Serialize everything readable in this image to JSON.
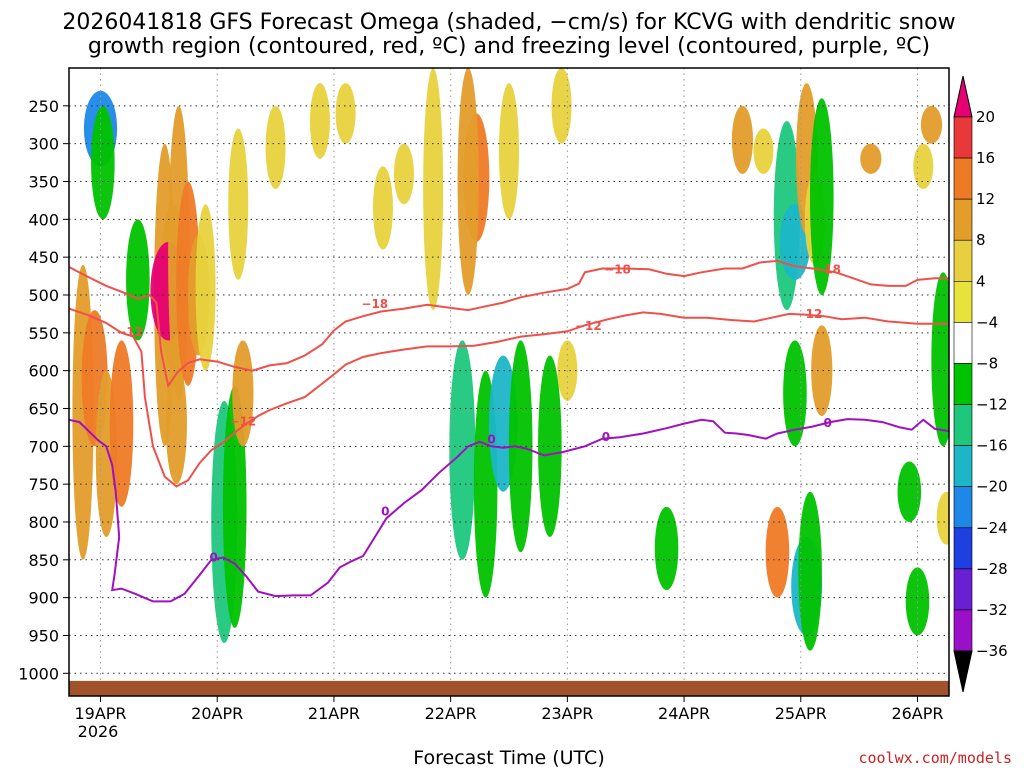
{
  "chart_data": {
    "type": "heatmap",
    "title_lines": [
      "2026041818 GFS Forecast Omega (shaded, −cm/s) for KCVG with dendritic snow",
      "growth region (contoured, red, ºC) and freezing level (contoured, purple, ºC)"
    ],
    "xlabel": "Forecast Time (UTC)",
    "ylabel": "",
    "x_ticks": [
      "19APR",
      "20APR",
      "21APR",
      "22APR",
      "23APR",
      "24APR",
      "25APR",
      "26APR"
    ],
    "x_year_label": "2026",
    "xlim": [
      -0.27,
      7.27
    ],
    "y_ticks": [
      250,
      300,
      350,
      400,
      450,
      500,
      550,
      600,
      650,
      700,
      750,
      800,
      850,
      900,
      950,
      1000
    ],
    "ylim": [
      200,
      1030
    ],
    "colorbar": {
      "labels": [
        "20",
        "16",
        "12",
        "8",
        "4",
        "−4",
        "−8",
        "−12",
        "−16",
        "−20",
        "−24",
        "−28",
        "−32",
        "−36"
      ],
      "colors": [
        "#e60073",
        "#e8383a",
        "#ef7a26",
        "#e39d2b",
        "#e8cf3d",
        "#e8e23c",
        "#ffffff",
        "#00c200",
        "#1ec77c",
        "#1cb6c8",
        "#1e88e8",
        "#1f3fe0",
        "#6a1fd4",
        "#9a10c8",
        "#a0a0a0",
        "#000000"
      ]
    },
    "series": [
      {
        "name": "-18",
        "color": "#f0504a",
        "label": "−18",
        "points": [
          [
            -0.27,
            463
          ],
          [
            -0.12,
            475
          ],
          [
            0.05,
            488
          ],
          [
            0.2,
            497
          ],
          [
            0.32,
            505
          ],
          [
            0.42,
            500
          ],
          [
            0.48,
            510
          ],
          [
            0.52,
            575
          ],
          [
            0.58,
            620
          ],
          [
            0.66,
            602
          ],
          [
            0.75,
            590
          ],
          [
            0.85,
            585
          ],
          [
            1.0,
            588
          ],
          [
            1.15,
            595
          ],
          [
            1.3,
            600
          ],
          [
            1.45,
            593
          ],
          [
            1.6,
            590
          ],
          [
            1.75,
            580
          ],
          [
            1.9,
            565
          ],
          [
            2.0,
            547
          ],
          [
            2.1,
            535
          ],
          [
            2.25,
            528
          ],
          [
            2.4,
            522
          ],
          [
            2.6,
            518
          ],
          [
            2.8,
            513
          ],
          [
            3.0,
            517
          ],
          [
            3.15,
            520
          ],
          [
            3.3,
            515
          ],
          [
            3.45,
            510
          ],
          [
            3.6,
            503
          ],
          [
            3.8,
            497
          ],
          [
            4.0,
            492
          ],
          [
            4.1,
            485
          ],
          [
            4.15,
            470
          ],
          [
            4.3,
            465
          ],
          [
            4.5,
            465
          ],
          [
            4.7,
            466
          ],
          [
            4.85,
            472
          ],
          [
            5.0,
            475
          ],
          [
            5.15,
            470
          ],
          [
            5.35,
            465
          ],
          [
            5.5,
            465
          ],
          [
            5.65,
            457
          ],
          [
            5.8,
            455
          ],
          [
            5.95,
            462
          ],
          [
            6.1,
            465
          ],
          [
            6.3,
            470
          ],
          [
            6.45,
            478
          ],
          [
            6.6,
            486
          ],
          [
            6.75,
            488
          ],
          [
            6.9,
            488
          ],
          [
            7.0,
            480
          ],
          [
            7.15,
            478
          ],
          [
            7.27,
            478
          ]
        ],
        "labels": [
          {
            "x": 2.35,
            "y": 512
          },
          {
            "x": 4.43,
            "y": 466
          },
          {
            "x": 6.23,
            "y": 466
          }
        ]
      },
      {
        "name": "-12",
        "color": "#f0504a",
        "label": "−12",
        "points": [
          [
            -0.27,
            518
          ],
          [
            -0.1,
            527
          ],
          [
            0.05,
            537
          ],
          [
            0.18,
            550
          ],
          [
            0.28,
            555
          ],
          [
            0.35,
            575
          ],
          [
            0.38,
            635
          ],
          [
            0.45,
            700
          ],
          [
            0.55,
            740
          ],
          [
            0.65,
            753
          ],
          [
            0.75,
            745
          ],
          [
            0.85,
            722
          ],
          [
            0.95,
            705
          ],
          [
            1.05,
            695
          ],
          [
            1.15,
            682
          ],
          [
            1.25,
            670
          ],
          [
            1.35,
            660
          ],
          [
            1.45,
            652
          ],
          [
            1.6,
            643
          ],
          [
            1.75,
            635
          ],
          [
            1.9,
            617
          ],
          [
            2.0,
            605
          ],
          [
            2.1,
            592
          ],
          [
            2.25,
            582
          ],
          [
            2.4,
            577
          ],
          [
            2.6,
            572
          ],
          [
            2.8,
            568
          ],
          [
            3.0,
            568
          ],
          [
            3.2,
            567
          ],
          [
            3.4,
            562
          ],
          [
            3.6,
            555
          ],
          [
            3.8,
            552
          ],
          [
            4.0,
            548
          ],
          [
            4.15,
            540
          ],
          [
            4.35,
            532
          ],
          [
            4.5,
            527
          ],
          [
            4.65,
            523
          ],
          [
            4.8,
            525
          ],
          [
            5.0,
            530
          ],
          [
            5.2,
            530
          ],
          [
            5.4,
            533
          ],
          [
            5.6,
            535
          ],
          [
            5.75,
            530
          ],
          [
            5.9,
            525
          ],
          [
            6.05,
            526
          ],
          [
            6.2,
            528
          ],
          [
            6.35,
            532
          ],
          [
            6.55,
            530
          ],
          [
            6.75,
            535
          ],
          [
            7.0,
            538
          ],
          [
            7.27,
            538
          ]
        ],
        "labels": [
          {
            "x": 0.25,
            "y": 549
          },
          {
            "x": 1.22,
            "y": 667
          },
          {
            "x": 4.18,
            "y": 541
          },
          {
            "x": 6.07,
            "y": 525
          }
        ]
      },
      {
        "name": "0",
        "color": "#a010c0",
        "label": "0",
        "points": [
          [
            -0.27,
            665
          ],
          [
            -0.18,
            668
          ],
          [
            -0.1,
            680
          ],
          [
            -0.02,
            692
          ],
          [
            0.05,
            700
          ],
          [
            0.1,
            725
          ],
          [
            0.13,
            760
          ],
          [
            0.16,
            820
          ],
          [
            0.12,
            870
          ],
          [
            0.1,
            890
          ],
          [
            0.18,
            888
          ],
          [
            0.3,
            895
          ],
          [
            0.45,
            905
          ],
          [
            0.6,
            905
          ],
          [
            0.72,
            895
          ],
          [
            0.85,
            870
          ],
          [
            0.95,
            850
          ],
          [
            1.05,
            847
          ],
          [
            1.15,
            855
          ],
          [
            1.25,
            872
          ],
          [
            1.35,
            892
          ],
          [
            1.5,
            898
          ],
          [
            1.65,
            897
          ],
          [
            1.8,
            897
          ],
          [
            1.95,
            880
          ],
          [
            2.05,
            860
          ],
          [
            2.15,
            852
          ],
          [
            2.25,
            845
          ],
          [
            2.35,
            820
          ],
          [
            2.45,
            795
          ],
          [
            2.6,
            775
          ],
          [
            2.75,
            758
          ],
          [
            2.9,
            735
          ],
          [
            3.05,
            715
          ],
          [
            3.15,
            700
          ],
          [
            3.25,
            694
          ],
          [
            3.35,
            700
          ],
          [
            3.45,
            702
          ],
          [
            3.55,
            700
          ],
          [
            3.65,
            703
          ],
          [
            3.8,
            712
          ],
          [
            3.95,
            708
          ],
          [
            4.15,
            700
          ],
          [
            4.3,
            690
          ],
          [
            4.45,
            688
          ],
          [
            4.65,
            683
          ],
          [
            4.85,
            676
          ],
          [
            5.0,
            670
          ],
          [
            5.15,
            665
          ],
          [
            5.25,
            667
          ],
          [
            5.35,
            682
          ],
          [
            5.45,
            683
          ],
          [
            5.55,
            685
          ],
          [
            5.7,
            690
          ],
          [
            5.8,
            683
          ],
          [
            5.95,
            678
          ],
          [
            6.1,
            674
          ],
          [
            6.25,
            668
          ],
          [
            6.4,
            664
          ],
          [
            6.55,
            665
          ],
          [
            6.7,
            668
          ],
          [
            6.85,
            675
          ],
          [
            6.95,
            678
          ],
          [
            7.05,
            665
          ],
          [
            7.15,
            677
          ],
          [
            7.27,
            680
          ]
        ],
        "labels": [
          {
            "x": 0.97,
            "y": 847
          },
          {
            "x": 2.44,
            "y": 786
          },
          {
            "x": 3.35,
            "y": 691
          },
          {
            "x": 4.33,
            "y": 688
          },
          {
            "x": 6.23,
            "y": 669
          }
        ]
      }
    ],
    "omega_regions": [
      {
        "x": 0.62,
        "y0": 380,
        "y1": 600,
        "v": 10
      },
      {
        "x": 0.55,
        "y0": 300,
        "y1": 700,
        "v": 6
      },
      {
        "x": 0.58,
        "y0": 430,
        "y1": 560,
        "v": 18
      },
      {
        "x": 0.67,
        "y0": 250,
        "y1": 640,
        "v": 6
      },
      {
        "x": 0.75,
        "y0": 350,
        "y1": 620,
        "v": 8
      },
      {
        "x": 0.84,
        "y0": 420,
        "y1": 580,
        "v": 6
      },
      {
        "x": 0.9,
        "y0": 380,
        "y1": 600,
        "v": 5
      },
      {
        "x": 0.65,
        "y0": 590,
        "y1": 750,
        "v": 6
      },
      {
        "x": 0.0,
        "y0": 230,
        "y1": 330,
        "v": -16
      },
      {
        "x": 0.02,
        "y0": 250,
        "y1": 400,
        "v": -8
      },
      {
        "x": -0.15,
        "y0": 460,
        "y1": 850,
        "v": 6
      },
      {
        "x": -0.05,
        "y0": 520,
        "y1": 700,
        "v": 10
      },
      {
        "x": 0.05,
        "y0": 600,
        "y1": 820,
        "v": 6
      },
      {
        "x": 0.18,
        "y0": 560,
        "y1": 780,
        "v": 8
      },
      {
        "x": 0.32,
        "y0": 400,
        "y1": 560,
        "v": -8
      },
      {
        "x": 1.06,
        "y0": 640,
        "y1": 960,
        "v": -10
      },
      {
        "x": 1.15,
        "y0": 620,
        "y1": 940,
        "v": -8
      },
      {
        "x": 1.22,
        "y0": 560,
        "y1": 700,
        "v": 6
      },
      {
        "x": 1.18,
        "y0": 280,
        "y1": 480,
        "v": 5
      },
      {
        "x": 1.5,
        "y0": 250,
        "y1": 360,
        "v": 5
      },
      {
        "x": 1.88,
        "y0": 220,
        "y1": 320,
        "v": 5
      },
      {
        "x": 2.1,
        "y0": 220,
        "y1": 300,
        "v": 5
      },
      {
        "x": 2.42,
        "y0": 330,
        "y1": 440,
        "v": 5
      },
      {
        "x": 2.6,
        "y0": 300,
        "y1": 380,
        "v": 5
      },
      {
        "x": 3.22,
        "y0": 260,
        "y1": 430,
        "v": 10
      },
      {
        "x": 3.15,
        "y0": 200,
        "y1": 500,
        "v": 6
      },
      {
        "x": 3.1,
        "y0": 560,
        "y1": 850,
        "v": -10
      },
      {
        "x": 3.3,
        "y0": 600,
        "y1": 900,
        "v": -8
      },
      {
        "x": 3.45,
        "y0": 580,
        "y1": 760,
        "v": -12
      },
      {
        "x": 3.6,
        "y0": 560,
        "y1": 840,
        "v": -8
      },
      {
        "x": 3.5,
        "y0": 220,
        "y1": 400,
        "v": 5
      },
      {
        "x": 3.85,
        "y0": 580,
        "y1": 820,
        "v": -8
      },
      {
        "x": 3.95,
        "y0": 200,
        "y1": 300,
        "v": 5
      },
      {
        "x": 4.0,
        "y0": 560,
        "y1": 640,
        "v": 5
      },
      {
        "x": 4.85,
        "y0": 780,
        "y1": 890,
        "v": -8
      },
      {
        "x": 5.5,
        "y0": 250,
        "y1": 340,
        "v": 6
      },
      {
        "x": 5.68,
        "y0": 280,
        "y1": 340,
        "v": 5
      },
      {
        "x": 5.88,
        "y0": 270,
        "y1": 520,
        "v": -10
      },
      {
        "x": 5.95,
        "y0": 380,
        "y1": 480,
        "v": -14
      },
      {
        "x": 6.05,
        "y0": 220,
        "y1": 420,
        "v": 6
      },
      {
        "x": 6.12,
        "y0": 340,
        "y1": 460,
        "v": 5
      },
      {
        "x": 5.8,
        "y0": 780,
        "y1": 900,
        "v": 8
      },
      {
        "x": 5.95,
        "y0": 560,
        "y1": 700,
        "v": -8
      },
      {
        "x": 6.05,
        "y0": 820,
        "y1": 950,
        "v": -14
      },
      {
        "x": 6.08,
        "y0": 760,
        "y1": 970,
        "v": -8
      },
      {
        "x": 6.18,
        "y0": 540,
        "y1": 660,
        "v": 6
      },
      {
        "x": 6.18,
        "y0": 240,
        "y1": 500,
        "v": -8
      },
      {
        "x": 6.6,
        "y0": 300,
        "y1": 340,
        "v": 6
      },
      {
        "x": 6.93,
        "y0": 720,
        "y1": 800,
        "v": -8
      },
      {
        "x": 7.0,
        "y0": 860,
        "y1": 950,
        "v": -8
      },
      {
        "x": 7.12,
        "y0": 250,
        "y1": 300,
        "v": 6
      },
      {
        "x": 7.05,
        "y0": 300,
        "y1": 360,
        "v": 5
      },
      {
        "x": 7.22,
        "y0": 470,
        "y1": 700,
        "v": -8
      },
      {
        "x": 7.25,
        "y0": 760,
        "y1": 830,
        "v": 5
      },
      {
        "x": 2.85,
        "y0": 200,
        "y1": 520,
        "v": 5
      }
    ]
  },
  "credit": "coolwx.com/models"
}
